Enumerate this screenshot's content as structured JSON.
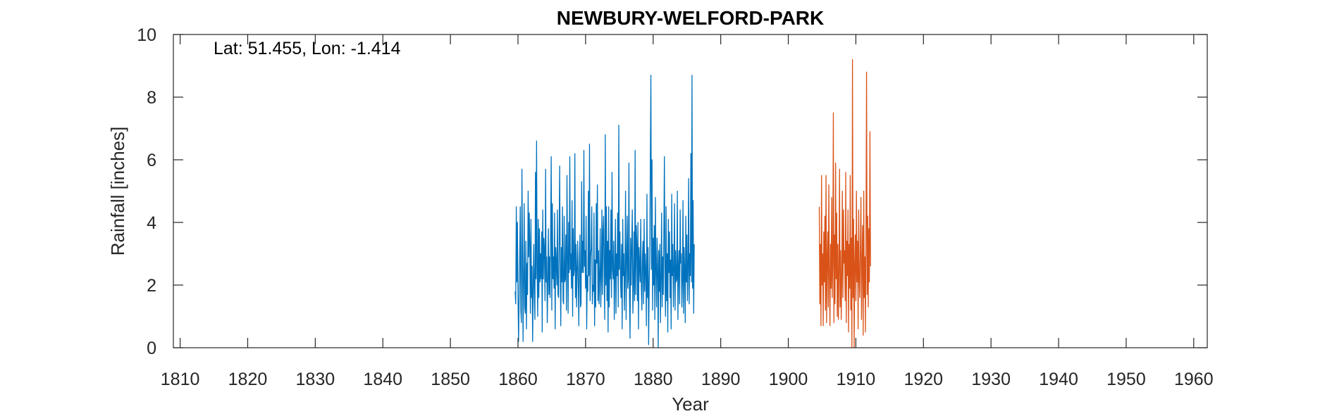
{
  "chart_data": {
    "type": "line",
    "title": "NEWBURY-WELFORD-PARK",
    "xlabel": "Year",
    "ylabel": "Rainfall [inches]",
    "annotation": "Lat: 51.455, Lon: -1.414",
    "xlim": [
      1809,
      1962
    ],
    "ylim": [
      0,
      10
    ],
    "xticks": [
      1810,
      1820,
      1830,
      1840,
      1850,
      1860,
      1870,
      1880,
      1890,
      1900,
      1910,
      1920,
      1930,
      1940,
      1950,
      1960
    ],
    "yticks": [
      0,
      2,
      4,
      6,
      8,
      10
    ],
    "grid": false,
    "series": [
      {
        "color": "#0072BD",
        "x_start": 1859.583,
        "x_step": 0.08333,
        "values": [
          1.8,
          1.4,
          4.5,
          2.1,
          4.0,
          1.7,
          0.2,
          1.6,
          2.8,
          4.5,
          1.2,
          0.8,
          5.7,
          3.1,
          0.2,
          2.2,
          4.6,
          1.3,
          1.1,
          3.4,
          0.6,
          2.7,
          1.7,
          5.0,
          2.9,
          4.3,
          3.3,
          1.1,
          4.1,
          1.6,
          2.6,
          0.2,
          1.9,
          3.3,
          1.7,
          0.9,
          5.6,
          2.2,
          6.6,
          2.5,
          1.0,
          4.1,
          1.6,
          3.8,
          2.1,
          3.0,
          2.2,
          3.7,
          0.5,
          4.4,
          2.2,
          3.5,
          3.1,
          1.5,
          5.7,
          2.1,
          2.9,
          0.8,
          2.1,
          3.8,
          1.7,
          2.9,
          1.6,
          3.8,
          6.1,
          1.2,
          4.6,
          2.2,
          2.9,
          1.9,
          4.3,
          0.6,
          3.2,
          2.7,
          2.0,
          4.4,
          1.7,
          1.6,
          3.3,
          5.8,
          2.6,
          0.7,
          3.2,
          2.1,
          4.5,
          1.5,
          1.4,
          4.2,
          2.1,
          2.2,
          3.6,
          1.2,
          5.5,
          2.9,
          1.1,
          4.0,
          2.4,
          6.1,
          2.5,
          3.0,
          1.9,
          4.7,
          1.0,
          3.8,
          2.3,
          2.5,
          6.2,
          1.6,
          3.3,
          1.3,
          2.5,
          3.4,
          2.1,
          0.7,
          2.8,
          3.6,
          1.3,
          1.4,
          5.3,
          2.4,
          3.4,
          2.4,
          6.3,
          2.6,
          3.1,
          1.9,
          4.2,
          0.6,
          2.3,
          1.8,
          5.0,
          2.3,
          6.5,
          1.5,
          2.9,
          3.2,
          4.5,
          1.4,
          2.0,
          1.8,
          4.3,
          0.7,
          2.8,
          1.3,
          4.6,
          2.7,
          5.2,
          1.5,
          3.1,
          1.4,
          2.3,
          3.8,
          1.3,
          2.2,
          4.4,
          1.7,
          3.7,
          4.2,
          2.3,
          0.9,
          6.8,
          2.0,
          4.5,
          1.5,
          3.4,
          0.5,
          4.5,
          1.3,
          3.1,
          2.2,
          4.4,
          1.6,
          5.6,
          2.5,
          2.2,
          3.4,
          0.9,
          2.4,
          4.1,
          1.1,
          3.0,
          2.3,
          4.3,
          1.3,
          7.1,
          2.5,
          3.7,
          2.2,
          1.6,
          3.3,
          0.6,
          4.1,
          2.3,
          3.0,
          1.2,
          2.4,
          5.0,
          0.9,
          2.8,
          4.2,
          1.9,
          2.2,
          5.9,
          1.6,
          0.3,
          3.5,
          2.0,
          3.3,
          4.4,
          1.1,
          1.9,
          3.7,
          1.5,
          6.3,
          1.7,
          3.9,
          3.3,
          1.5,
          4.0,
          0.6,
          3.2,
          2.6,
          2.1,
          4.1,
          1.9,
          1.2,
          2.9,
          3.4,
          1.4,
          4.1,
          1.8,
          3.0,
          2.4,
          0.7,
          4.9,
          1.6,
          3.2,
          0.1,
          2.0,
          2.9,
          5.9,
          8.7,
          2.5,
          6.0,
          1.2,
          3.5,
          2.0,
          3.9,
          0.9,
          4.8,
          2.5,
          1.3,
          3.5,
          2.6,
          0.0,
          3.1,
          1.8,
          3.3,
          0.8,
          2.2,
          4.3,
          1.3,
          2.9,
          1.7,
          3.6,
          6.1,
          2.2,
          1.0,
          4.5,
          1.5,
          3.0,
          0.5,
          4.1,
          2.4,
          3.7,
          1.6,
          2.8,
          0.6,
          4.9,
          2.3,
          3.3,
          1.3,
          2.5,
          4.6,
          1.2,
          3.1,
          2.1,
          2.2,
          5.0,
          0.9,
          2.6,
          3.1,
          1.4,
          4.4,
          2.7,
          3.0,
          1.3,
          2.1,
          4.7,
          1.1,
          3.2,
          2.5,
          0.8,
          4.2,
          2.1,
          3.6,
          1.5,
          2.5,
          5.4,
          1.4,
          3.0,
          2.3,
          6.2,
          2.1,
          8.7,
          1.9,
          4.7,
          1.1,
          3.3
        ]
      },
      {
        "color": "#D95319",
        "x_start": 1904.583,
        "x_step": 0.08333,
        "values": [
          4.5,
          1.4,
          3.3,
          0.7,
          5.5,
          2.0,
          3.0,
          0.7,
          3.7,
          2.1,
          4.2,
          1.2,
          5.5,
          0.8,
          2.8,
          3.7,
          1.3,
          5.2,
          2.2,
          0.7,
          3.3,
          1.9,
          4.8,
          1.6,
          2.7,
          7.5,
          0.8,
          3.6,
          1.4,
          5.9,
          2.2,
          4.3,
          1.0,
          3.3,
          0.9,
          2.4,
          5.7,
          1.3,
          3.1,
          0.9,
          2.2,
          5.0,
          1.6,
          4.4,
          2.7,
          3.1,
          1.5,
          5.6,
          0.8,
          3.4,
          2.3,
          4.4,
          0.5,
          3.3,
          1.9,
          5.5,
          1.2,
          3.5,
          0.0,
          9.2,
          1.6,
          4.1,
          0.0,
          2.7,
          3.6,
          1.5,
          5.0,
          2.1,
          3.4,
          0.6,
          4.4,
          2.2,
          1.6,
          3.2,
          4.8,
          0.9,
          2.6,
          3.9,
          0.4,
          5.0,
          1.6,
          2.9,
          0.5,
          3.8,
          8.8,
          1.7,
          4.2,
          1.3,
          3.8,
          2.1,
          6.9,
          2.6
        ]
      }
    ]
  }
}
